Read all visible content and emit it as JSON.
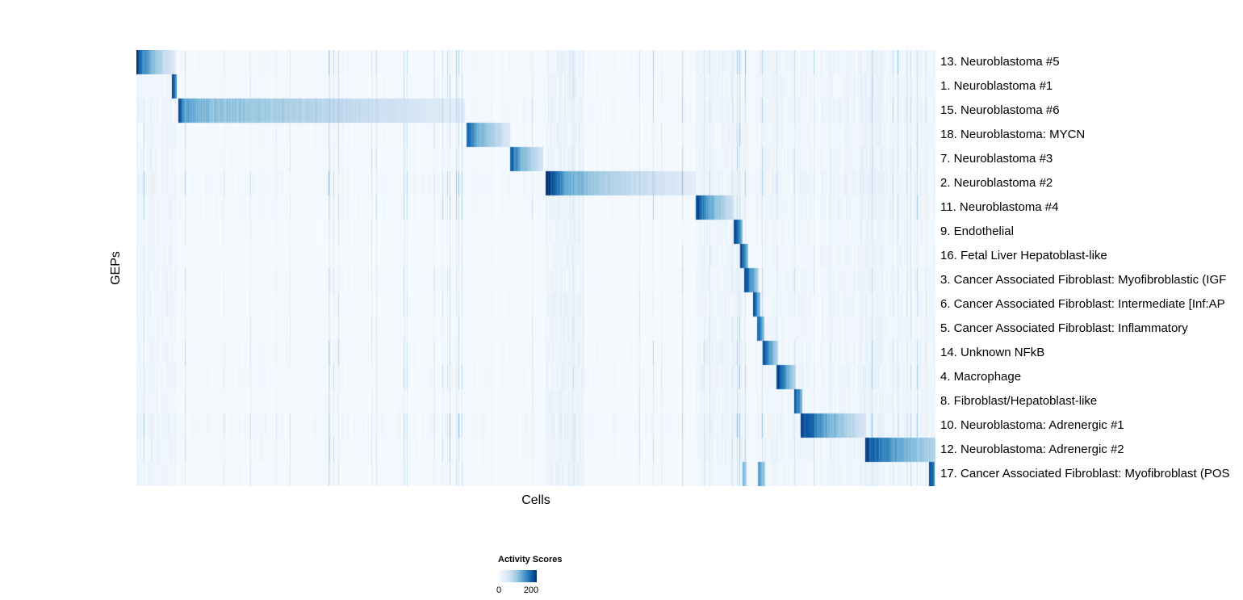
{
  "chart_data": {
    "type": "heatmap",
    "title": "",
    "xlabel": "Cells",
    "ylabel": "GEPs",
    "colormap_name": "Blues",
    "colormap_colors": [
      "#f7fbff",
      "#deebf7",
      "#c6dbef",
      "#9ecae1",
      "#6baed6",
      "#4292c6",
      "#2171b5",
      "#08519c",
      "#08306b"
    ],
    "value_range": [
      0,
      200
    ],
    "legend": {
      "title": "Activity Scores",
      "ticks": [
        "0",
        "200"
      ]
    },
    "noise": {
      "stripe_density": 0.05,
      "stripe_strength": 0.22,
      "base": 0.035
    },
    "noise_bands": [
      [
        0.0,
        0.05,
        0.05
      ],
      [
        0.512,
        0.56,
        0.08
      ],
      [
        0.7,
        0.76,
        0.06
      ],
      [
        0.775,
        0.845,
        0.05
      ],
      [
        0.855,
        0.935,
        0.05
      ],
      [
        0.905,
        1.0,
        0.05
      ]
    ],
    "rows": [
      {
        "label": "13. Neuroblastoma #5",
        "noise": 1.1,
        "blocks": [
          {
            "start": 0.0,
            "end": 0.0475,
            "stops": [
              [
                0,
                1.0
              ],
              [
                0.12,
                0.72
              ],
              [
                0.45,
                0.4
              ],
              [
                1,
                0.12
              ]
            ]
          }
        ]
      },
      {
        "label": "1. Neuroblastoma #1",
        "noise": 0.9,
        "blocks": [
          {
            "start": 0.0444,
            "end": 0.0505,
            "stops": [
              [
                0,
                0.95
              ],
              [
                1,
                0.45
              ]
            ]
          }
        ]
      },
      {
        "label": "15. Neuroblastoma #6",
        "noise": 1.2,
        "blocks": [
          {
            "start": 0.0525,
            "end": 0.411,
            "stops": [
              [
                0,
                1.0
              ],
              [
                0.015,
                0.55
              ],
              [
                0.12,
                0.42
              ],
              [
                0.5,
                0.3
              ],
              [
                1,
                0.1
              ]
            ]
          }
        ]
      },
      {
        "label": "18. Neuroblastoma: MYCN",
        "noise": 0.9,
        "blocks": [
          {
            "start": 0.413,
            "end": 0.467,
            "stops": [
              [
                0,
                0.8
              ],
              [
                0.25,
                0.5
              ],
              [
                1,
                0.14
              ]
            ]
          }
        ]
      },
      {
        "label": "7. Neuroblastoma #3",
        "noise": 0.9,
        "blocks": [
          {
            "start": 0.467,
            "end": 0.509,
            "stops": [
              [
                0,
                0.85
              ],
              [
                0.3,
                0.5
              ],
              [
                1,
                0.16
              ]
            ]
          }
        ]
      },
      {
        "label": "2. Neuroblastoma #2",
        "noise": 1.3,
        "blocks": [
          {
            "start": 0.512,
            "end": 0.699,
            "stops": [
              [
                0,
                1.0
              ],
              [
                0.04,
                0.85
              ],
              [
                0.15,
                0.5
              ],
              [
                0.45,
                0.3
              ],
              [
                1,
                0.1
              ]
            ]
          }
        ]
      },
      {
        "label": "11. Neuroblastoma #4",
        "noise": 1.0,
        "blocks": [
          {
            "start": 0.7,
            "end": 0.747,
            "stops": [
              [
                0,
                0.95
              ],
              [
                0.3,
                0.55
              ],
              [
                1,
                0.18
              ]
            ]
          }
        ]
      },
      {
        "label": "9. Endothelial",
        "noise": 0.6,
        "blocks": [
          {
            "start": 0.747,
            "end": 0.758,
            "stops": [
              [
                0,
                0.95
              ],
              [
                1,
                0.4
              ]
            ]
          }
        ]
      },
      {
        "label": "16. Fetal Liver Hepatoblast-like",
        "noise": 0.6,
        "blocks": [
          {
            "start": 0.755,
            "end": 0.765,
            "stops": [
              [
                0,
                0.95
              ],
              [
                1,
                0.4
              ]
            ]
          }
        ]
      },
      {
        "label": "3. Cancer Associated Fibroblast: Myofibroblastic (IGF",
        "noise": 0.8,
        "blocks": [
          {
            "start": 0.76,
            "end": 0.778,
            "stops": [
              [
                0,
                0.95
              ],
              [
                0.5,
                0.6
              ],
              [
                1,
                0.3
              ]
            ]
          }
        ]
      },
      {
        "label": "6. Cancer Associated Fibroblast: Intermediate [Inf:AP",
        "noise": 0.7,
        "blocks": [
          {
            "start": 0.771,
            "end": 0.78,
            "stops": [
              [
                0,
                0.9
              ],
              [
                1,
                0.4
              ]
            ]
          }
        ]
      },
      {
        "label": "5. Cancer Associated Fibroblast: Inflammatory",
        "noise": 0.7,
        "blocks": [
          {
            "start": 0.776,
            "end": 0.785,
            "stops": [
              [
                0,
                0.9
              ],
              [
                1,
                0.4
              ]
            ]
          }
        ]
      },
      {
        "label": "14. Unknown NFkB",
        "noise": 0.9,
        "blocks": [
          {
            "start": 0.783,
            "end": 0.803,
            "stops": [
              [
                0,
                0.92
              ],
              [
                0.5,
                0.55
              ],
              [
                1,
                0.25
              ]
            ]
          }
        ]
      },
      {
        "label": "4. Macrophage",
        "noise": 1.0,
        "blocks": [
          {
            "start": 0.801,
            "end": 0.825,
            "stops": [
              [
                0,
                0.95
              ],
              [
                0.5,
                0.55
              ],
              [
                1,
                0.25
              ]
            ]
          }
        ]
      },
      {
        "label": "8. Fibroblast/Hepatoblast-like",
        "noise": 0.7,
        "blocks": [
          {
            "start": 0.823,
            "end": 0.833,
            "stops": [
              [
                0,
                0.9
              ],
              [
                1,
                0.4
              ]
            ]
          }
        ]
      },
      {
        "label": "10. Neuroblastoma: Adrenergic #1",
        "noise": 1.2,
        "blocks": [
          {
            "start": 0.831,
            "end": 0.913,
            "stops": [
              [
                0,
                1.0
              ],
              [
                0.08,
                0.85
              ],
              [
                0.4,
                0.5
              ],
              [
                1,
                0.15
              ]
            ]
          }
        ]
      },
      {
        "label": "12. Neuroblastoma: Adrenergic #2",
        "noise": 1.0,
        "blocks": [
          {
            "start": 0.912,
            "end": 1.0,
            "stops": [
              [
                0,
                0.9
              ],
              [
                0.4,
                0.55
              ],
              [
                1,
                0.3
              ]
            ]
          }
        ]
      },
      {
        "label": "17. Cancer Associated Fibroblast: Myofibroblast (POS",
        "noise": 0.8,
        "blocks": [
          {
            "start": 0.758,
            "end": 0.763,
            "stops": [
              [
                0,
                0.55
              ],
              [
                1,
                0.3
              ]
            ]
          },
          {
            "start": 0.777,
            "end": 0.786,
            "stops": [
              [
                0,
                0.6
              ],
              [
                1,
                0.35
              ]
            ]
          },
          {
            "start": 0.991,
            "end": 0.998,
            "stops": [
              [
                0,
                0.85
              ],
              [
                1,
                0.7
              ]
            ]
          }
        ]
      }
    ]
  }
}
